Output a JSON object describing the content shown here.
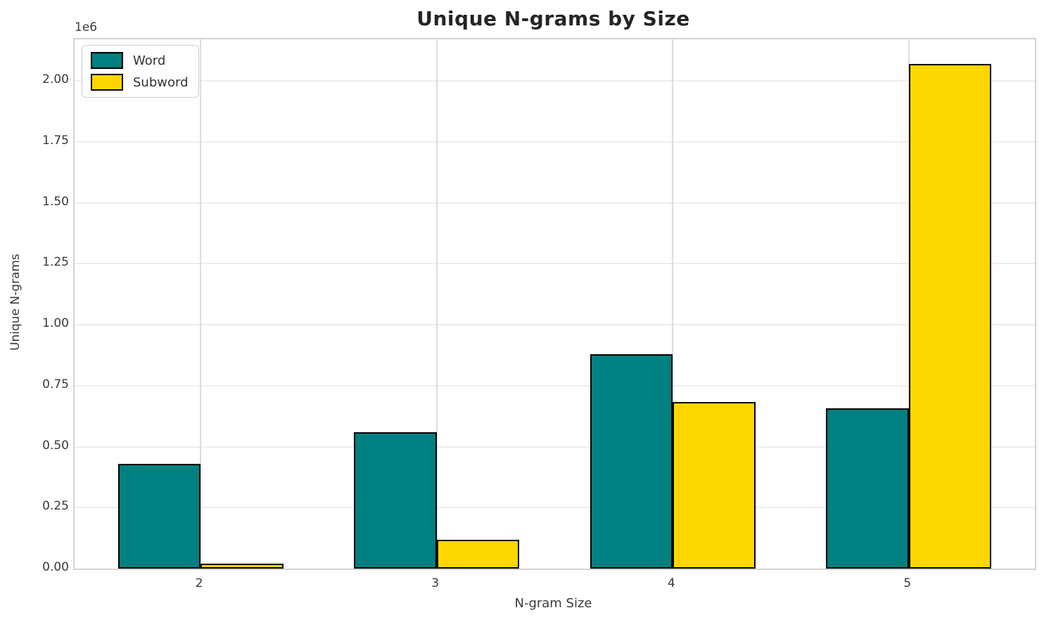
{
  "chart_data": {
    "type": "bar",
    "title": "Unique N-grams by Size",
    "xlabel": "N-gram Size",
    "ylabel": "Unique N-grams",
    "offset_text": "1e6",
    "categories": [
      "2",
      "3",
      "4",
      "5"
    ],
    "series": [
      {
        "name": "Word",
        "color": "#008080",
        "values": [
          430000,
          560000,
          878000,
          656000
        ]
      },
      {
        "name": "Subword",
        "color": "#FFD700",
        "values": [
          20000,
          118000,
          682000,
          2070000
        ]
      }
    ],
    "bar_edge_color": "#000000",
    "ylim": [
      0,
      2171000
    ],
    "yticks": [
      0,
      250000,
      500000,
      750000,
      1000000,
      1250000,
      1500000,
      1750000,
      2000000
    ],
    "ytick_labels": [
      "0.00",
      "0.25",
      "0.50",
      "0.75",
      "1.00",
      "1.25",
      "1.50",
      "1.75",
      "2.00"
    ],
    "grid": true,
    "legend_position": "upper left"
  }
}
